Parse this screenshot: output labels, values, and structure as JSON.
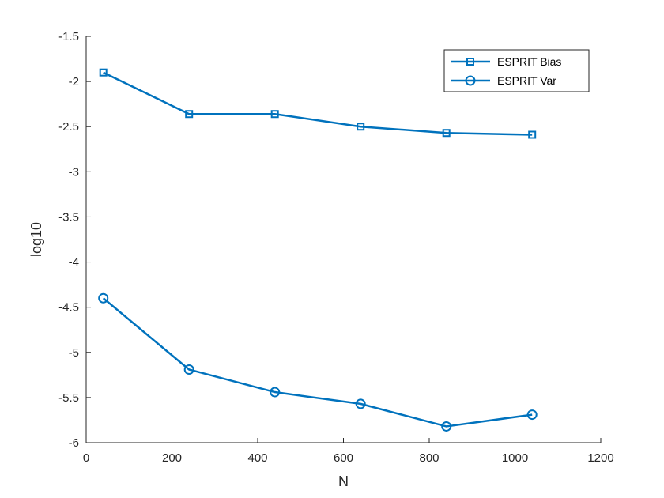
{
  "chart_data": {
    "type": "line",
    "title": "",
    "xlabel": "N",
    "ylabel": "log10",
    "xlim": [
      0,
      1200
    ],
    "ylim": [
      -6,
      -1.5
    ],
    "xticks": [
      0,
      200,
      400,
      600,
      800,
      1000,
      1200
    ],
    "yticks": [
      -6,
      -5.5,
      -5,
      -4.5,
      -4,
      -3.5,
      -3,
      -2.5,
      -2,
      -1.5
    ],
    "xtick_labels": [
      "0",
      "200",
      "400",
      "600",
      "800",
      "1000",
      "1200"
    ],
    "ytick_labels": [
      "-6",
      "-5.5",
      "-5",
      "-4.5",
      "-4",
      "-3.5",
      "-3",
      "-2.5",
      "-2",
      "-1.5"
    ],
    "grid": false,
    "legend_position": "top-right",
    "color": "#0072BD",
    "x": [
      40,
      240,
      440,
      640,
      840,
      1040
    ],
    "series": [
      {
        "name": "ESPRIT Bias",
        "marker": "square",
        "values": [
          -1.9,
          -2.36,
          -2.36,
          -2.5,
          -2.57,
          -2.59
        ]
      },
      {
        "name": "ESPRIT Var",
        "marker": "circle",
        "values": [
          -4.4,
          -5.19,
          -5.44,
          -5.57,
          -5.82,
          -5.69
        ]
      }
    ]
  }
}
